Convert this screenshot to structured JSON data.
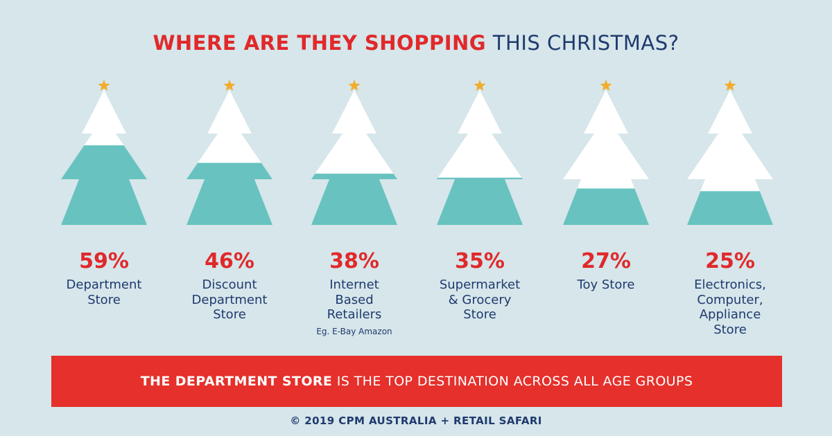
{
  "title": {
    "strong": "WHERE ARE THEY SHOPPING",
    "rest": "THIS CHRISTMAS?"
  },
  "colors": {
    "fill": "#68c3c0",
    "empty": "#ffffff",
    "star": "#f2ac2b",
    "red": "#e0292b",
    "navy": "#1f3a6e",
    "background": "#d6e6ea"
  },
  "chart_data": {
    "type": "bar",
    "categories": [
      "Department Store",
      "Discount Department Store",
      "Internet Based Retailers",
      "Supermarket & Grocery Store",
      "Toy Store",
      "Electronics, Computer, Appliance Store"
    ],
    "values": [
      59,
      46,
      38,
      35,
      27,
      25
    ],
    "value_labels": [
      "59%",
      "46%",
      "38%",
      "35%",
      "27%",
      "25%"
    ],
    "ylim": [
      0,
      100
    ],
    "annotations": [
      "Eg. E-Bay Amazon"
    ]
  },
  "labels": [
    {
      "text": "Department\nStore"
    },
    {
      "text": "Discount\nDepartment\nStore"
    },
    {
      "text": "Internet\nBased\nRetailers",
      "note": "Eg. E-Bay Amazon"
    },
    {
      "text": "Supermarket\n& Grocery\nStore"
    },
    {
      "text": "Toy Store"
    },
    {
      "text": "Electronics,\nComputer,\nAppliance\nStore"
    }
  ],
  "banner": {
    "strong": "THE DEPARTMENT STORE",
    "rest": "IS THE TOP DESTINATION ACROSS ALL AGE GROUPS"
  },
  "footer": "© 2019 CPM AUSTRALIA + RETAIL SAFARI"
}
